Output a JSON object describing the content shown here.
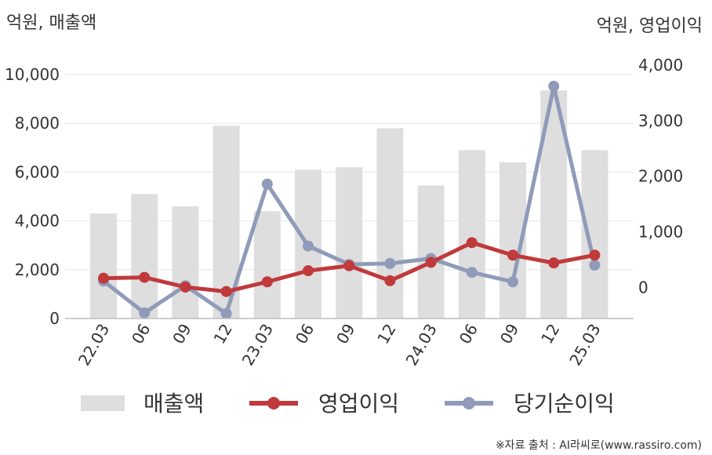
{
  "chart_data": {
    "type": "bar",
    "categories": [
      "22.03",
      "06",
      "09",
      "12",
      "23.03",
      "06",
      "09",
      "12",
      "24.03",
      "06",
      "09",
      "12",
      "25.03"
    ],
    "left_axis": {
      "title": "억원, 매출액",
      "ylim": [
        0,
        10000
      ],
      "ticks": [
        "0",
        "2,000",
        "4,000",
        "6,000",
        "8,000",
        "10,000"
      ],
      "tick_values": [
        0,
        2000,
        4000,
        6000,
        8000,
        10000
      ]
    },
    "right_axis": {
      "title": "억원, 영업이익",
      "ylim": [
        -560,
        4000
      ],
      "ticks": [
        "0",
        "1,000",
        "2,000",
        "3,000",
        "4,000"
      ],
      "tick_values": [
        0,
        1000,
        2000,
        3000,
        4000
      ]
    },
    "series": [
      {
        "name": "매출액",
        "type": "bar",
        "axis": "left",
        "color": "#dedede",
        "values": [
          4300,
          5100,
          4600,
          7900,
          4400,
          6100,
          6200,
          7800,
          5450,
          6900,
          6400,
          9350,
          6900
        ]
      },
      {
        "name": "영업이익",
        "type": "line",
        "axis": "right",
        "color": "#c0393b",
        "values": [
          165,
          180,
          5,
          -75,
          100,
          300,
          390,
          120,
          450,
          805,
          580,
          440,
          580
        ]
      },
      {
        "name": "당기순이익",
        "type": "line",
        "axis": "right",
        "color": "#8f9bb8",
        "values": [
          115,
          -460,
          30,
          -470,
          1860,
          745,
          415,
          430,
          520,
          270,
          100,
          3620,
          400
        ]
      }
    ],
    "grid": true,
    "legend": "bottom",
    "source": "※자료 출처 : AI라씨로(www.rassiro.com)"
  }
}
